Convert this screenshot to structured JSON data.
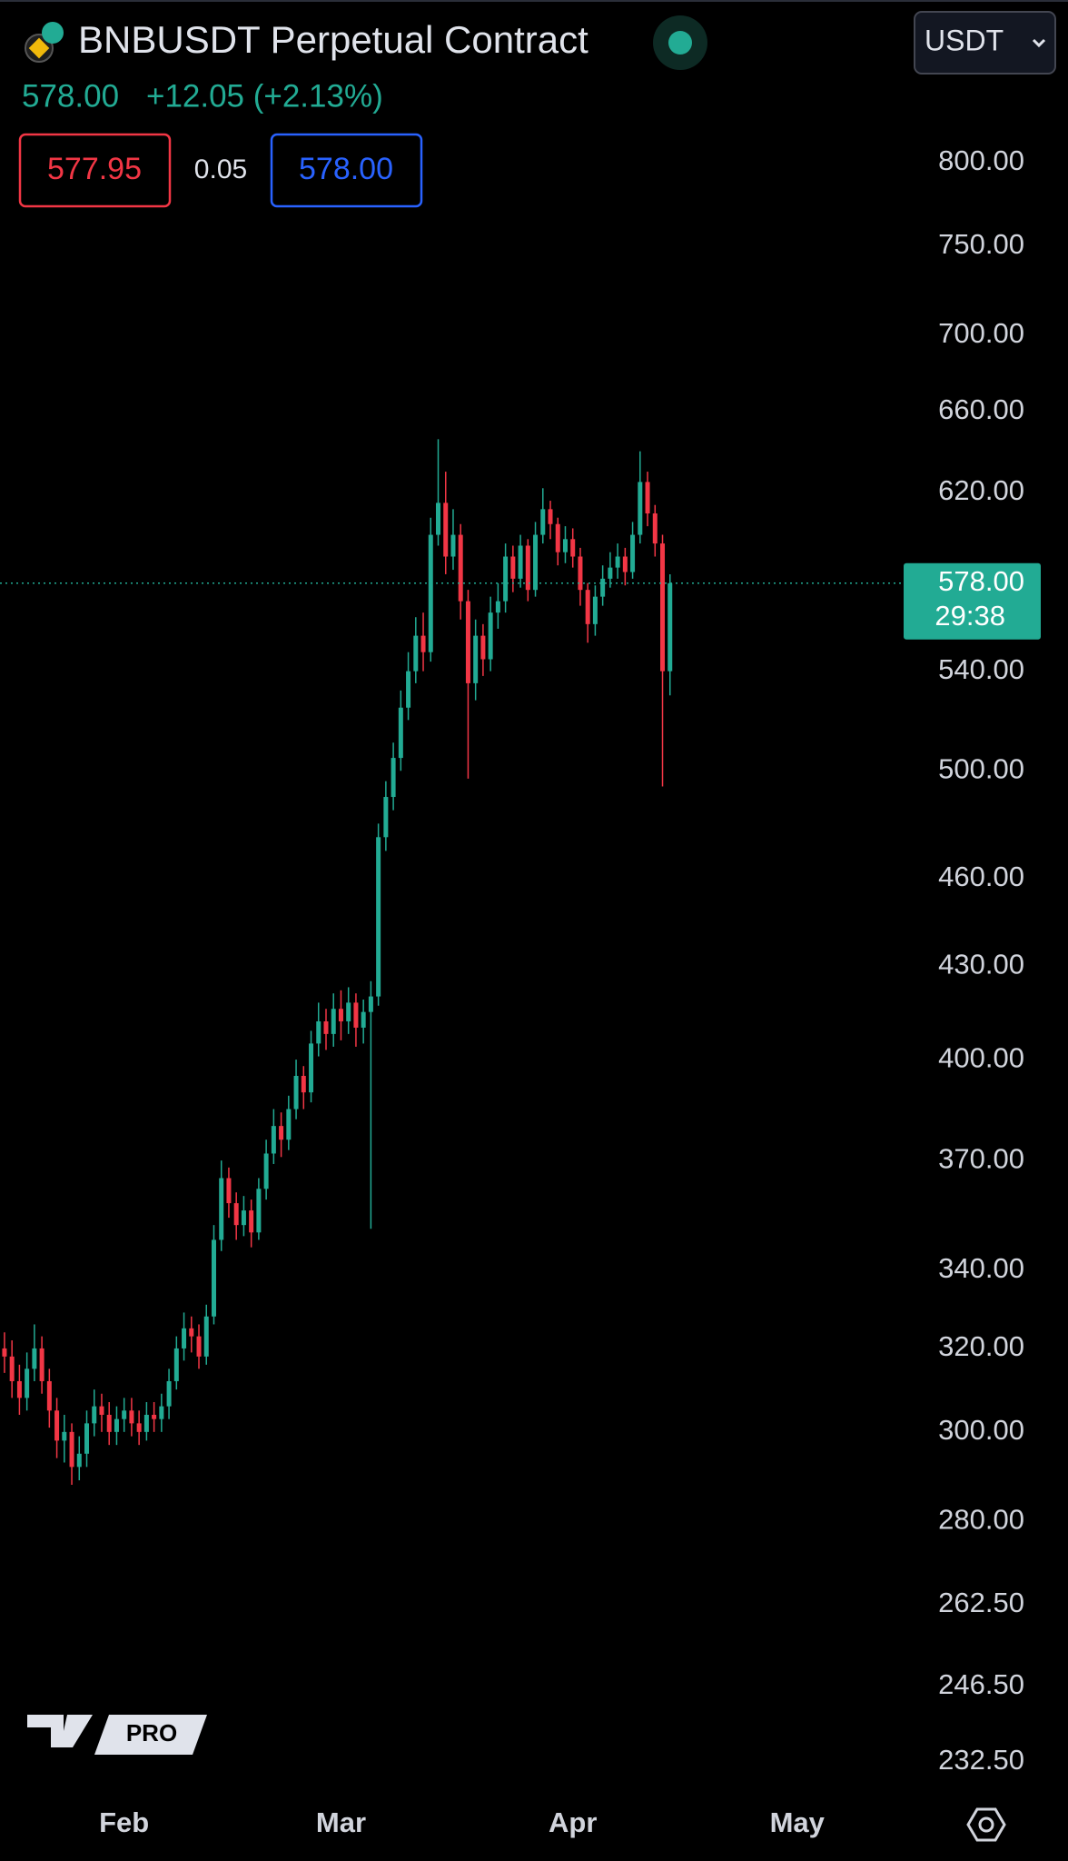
{
  "header": {
    "symbol": "BNBUSDT Perpetual Contract",
    "price": "578.00",
    "change": "+12.05 (+2.13%)",
    "bid": "577.95",
    "spread": "0.05",
    "ask": "578.00",
    "currency": "USDT",
    "logo": "PRO"
  },
  "chart_data": {
    "type": "candlestick",
    "log_scale": true,
    "grid": false,
    "up_color": "#22ab94",
    "down_color": "#f23645",
    "xlim": [
      -0.6,
      120
    ],
    "xticks": [
      {
        "value": 16,
        "label": "Feb"
      },
      {
        "value": 45,
        "label": "Mar"
      },
      {
        "value": 76,
        "label": "Apr"
      },
      {
        "value": 106,
        "label": "May"
      }
    ],
    "ylim": [
      227,
      907
    ],
    "yticks": [
      {
        "value": 800,
        "label": "800.00"
      },
      {
        "value": 750,
        "label": "750.00"
      },
      {
        "value": 700,
        "label": "700.00"
      },
      {
        "value": 660,
        "label": "660.00"
      },
      {
        "value": 620,
        "label": "620.00"
      },
      {
        "value": 540,
        "label": "540.00"
      },
      {
        "value": 500,
        "label": "500.00"
      },
      {
        "value": 460,
        "label": "460.00"
      },
      {
        "value": 430,
        "label": "430.00"
      },
      {
        "value": 400,
        "label": "400.00"
      },
      {
        "value": 370,
        "label": "370.00"
      },
      {
        "value": 340,
        "label": "340.00"
      },
      {
        "value": 320,
        "label": "320.00"
      },
      {
        "value": 300,
        "label": "300.00"
      },
      {
        "value": 280,
        "label": "280.00"
      },
      {
        "value": 262.5,
        "label": "262.50"
      },
      {
        "value": 246.5,
        "label": "246.50"
      },
      {
        "value": 232.5,
        "label": "232.50"
      }
    ],
    "last_price": {
      "value": 578,
      "label": "578.00"
    },
    "countdown": "29:38",
    "open": [
      320,
      318,
      312,
      308,
      315,
      320,
      312,
      305,
      298,
      300,
      292,
      295,
      302,
      306,
      304,
      300,
      303,
      305,
      302,
      300,
      304,
      303,
      306,
      312,
      320,
      325,
      323,
      318,
      328,
      348,
      365,
      358,
      352,
      356,
      350,
      362,
      372,
      380,
      376,
      385,
      395,
      390,
      405,
      412,
      408,
      416,
      412,
      418,
      410,
      415,
      420,
      475,
      490,
      505,
      525,
      540,
      555,
      548,
      600,
      615,
      590,
      600,
      570,
      535,
      555,
      545,
      565,
      570,
      590,
      580,
      595,
      575,
      600,
      612,
      605,
      592,
      598,
      590,
      575,
      560,
      572,
      580,
      585,
      590,
      583,
      600,
      625,
      610,
      596,
      540
    ],
    "high": [
      324,
      322,
      316,
      319,
      326,
      323,
      315,
      308,
      304,
      302,
      299,
      305,
      310,
      309,
      307,
      306,
      308,
      308,
      305,
      307,
      307,
      309,
      315,
      323,
      329,
      328,
      326,
      331,
      352,
      370,
      368,
      361,
      360,
      359,
      365,
      376,
      385,
      384,
      389,
      400,
      398,
      409,
      418,
      416,
      421,
      422,
      423,
      421,
      419,
      425,
      480,
      496,
      511,
      532,
      548,
      563,
      565,
      608,
      646,
      630,
      612,
      605,
      575,
      562,
      560,
      572,
      578,
      596,
      595,
      600,
      598,
      606,
      622,
      616,
      608,
      604,
      603,
      594,
      578,
      577,
      586,
      592,
      596,
      594,
      606,
      640,
      630,
      614,
      600,
      582
    ],
    "low": [
      314,
      308,
      304,
      305,
      312,
      309,
      301,
      294,
      293,
      288,
      289,
      292,
      299,
      300,
      297,
      297,
      300,
      299,
      297,
      298,
      300,
      300,
      303,
      310,
      317,
      319,
      315,
      316,
      326,
      345,
      354,
      348,
      349,
      346,
      348,
      359,
      369,
      371,
      373,
      382,
      385,
      387,
      401,
      403,
      404,
      406,
      408,
      404,
      405,
      351,
      417,
      470,
      485,
      500,
      520,
      535,
      540,
      544,
      595,
      582,
      584,
      562,
      497,
      528,
      538,
      540,
      558,
      565,
      574,
      576,
      570,
      572,
      596,
      598,
      586,
      587,
      585,
      568,
      552,
      555,
      568,
      576,
      580,
      577,
      580,
      596,
      604,
      590,
      494,
      530
    ],
    "close": [
      318,
      312,
      308,
      315,
      320,
      312,
      305,
      298,
      300,
      292,
      295,
      302,
      306,
      304,
      300,
      303,
      305,
      302,
      300,
      304,
      303,
      306,
      312,
      320,
      325,
      323,
      318,
      328,
      348,
      365,
      358,
      352,
      356,
      350,
      362,
      372,
      380,
      376,
      385,
      395,
      390,
      405,
      412,
      408,
      416,
      412,
      418,
      410,
      415,
      420,
      475,
      490,
      505,
      525,
      540,
      555,
      548,
      600,
      615,
      590,
      600,
      570,
      535,
      555,
      545,
      565,
      570,
      590,
      580,
      595,
      575,
      600,
      612,
      605,
      592,
      598,
      590,
      575,
      560,
      572,
      580,
      585,
      590,
      583,
      600,
      625,
      610,
      596,
      540,
      578
    ]
  }
}
